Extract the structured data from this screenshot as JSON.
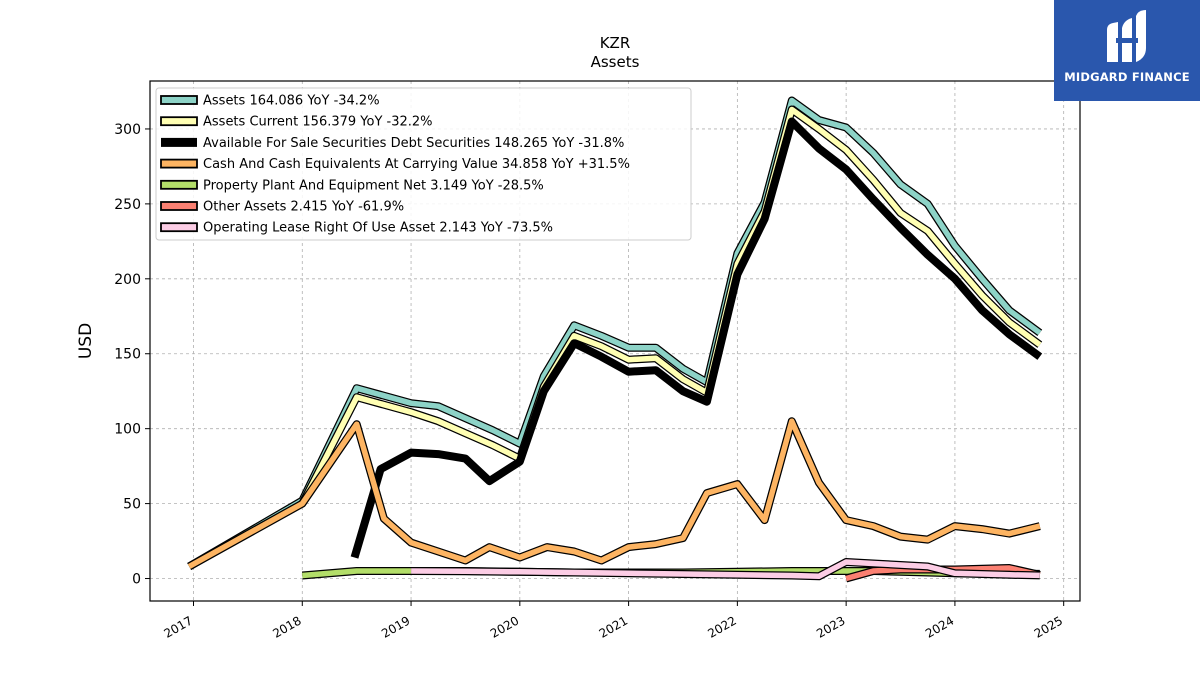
{
  "chart_data": {
    "type": "line",
    "title": "KZR",
    "subtitle": "Assets",
    "ylabel": "USD",
    "xlabel": "",
    "ylim": [
      -15,
      332
    ],
    "xlim": [
      2016.6,
      2025.15
    ],
    "yticks": [
      0,
      50,
      100,
      150,
      200,
      250,
      300
    ],
    "xticks": [
      2017,
      2018,
      2019,
      2020,
      2021,
      2022,
      2023,
      2024,
      2025
    ],
    "grid": true,
    "legend_position": "top-left",
    "series": [
      {
        "name": "Assets",
        "legend": "Assets  164.086 YoY -34.2%",
        "color": "#8dd3c7",
        "width": 5.5,
        "points": [
          [
            2016.96,
            8
          ],
          [
            2018.0,
            52
          ],
          [
            2018.5,
            127
          ],
          [
            2018.75,
            122
          ],
          [
            2019.0,
            117
          ],
          [
            2019.25,
            115
          ],
          [
            2019.5,
            107
          ],
          [
            2019.75,
            99
          ],
          [
            2020.0,
            90
          ],
          [
            2020.22,
            135
          ],
          [
            2020.5,
            169
          ],
          [
            2020.75,
            162
          ],
          [
            2021.0,
            154
          ],
          [
            2021.25,
            154
          ],
          [
            2021.5,
            140
          ],
          [
            2021.72,
            131
          ],
          [
            2022.0,
            217
          ],
          [
            2022.25,
            251
          ],
          [
            2022.5,
            319
          ],
          [
            2022.75,
            306
          ],
          [
            2023.0,
            301
          ],
          [
            2023.25,
            284
          ],
          [
            2023.5,
            263
          ],
          [
            2023.75,
            250
          ],
          [
            2024.0,
            222
          ],
          [
            2024.25,
            200
          ],
          [
            2024.5,
            179
          ],
          [
            2024.78,
            164
          ]
        ]
      },
      {
        "name": "Assets Current",
        "legend": "Assets Current  156.379 YoY -32.2%",
        "color": "#ffffb3",
        "width": 5.5,
        "points": [
          [
            2018.0,
            50
          ],
          [
            2018.5,
            121
          ],
          [
            2018.75,
            116
          ],
          [
            2019.0,
            111
          ],
          [
            2019.25,
            105
          ],
          [
            2019.5,
            97
          ],
          [
            2019.75,
            89
          ],
          [
            2020.0,
            80
          ],
          [
            2020.22,
            128
          ],
          [
            2020.5,
            162
          ],
          [
            2020.75,
            155
          ],
          [
            2021.0,
            146
          ],
          [
            2021.25,
            147
          ],
          [
            2021.5,
            133
          ],
          [
            2021.72,
            124
          ],
          [
            2022.0,
            210
          ],
          [
            2022.25,
            245
          ],
          [
            2022.5,
            313
          ],
          [
            2022.75,
            300
          ],
          [
            2023.0,
            286
          ],
          [
            2023.25,
            266
          ],
          [
            2023.5,
            244
          ],
          [
            2023.75,
            232
          ],
          [
            2024.0,
            210
          ],
          [
            2024.25,
            189
          ],
          [
            2024.5,
            171
          ],
          [
            2024.78,
            156
          ]
        ]
      },
      {
        "name": "Available For Sale Securities Debt Securities",
        "legend": "Available For Sale Securities Debt Securities  148.265 YoY -31.8%",
        "color": "#000000",
        "width": 8,
        "points": [
          [
            2018.48,
            14
          ],
          [
            2018.72,
            73
          ],
          [
            2019.0,
            84
          ],
          [
            2019.25,
            83
          ],
          [
            2019.5,
            80
          ],
          [
            2019.72,
            65
          ],
          [
            2020.0,
            78
          ],
          [
            2020.22,
            125
          ],
          [
            2020.5,
            157
          ],
          [
            2020.75,
            148
          ],
          [
            2021.0,
            138
          ],
          [
            2021.25,
            139
          ],
          [
            2021.5,
            125
          ],
          [
            2021.72,
            118
          ],
          [
            2022.0,
            203
          ],
          [
            2022.25,
            240
          ],
          [
            2022.5,
            305
          ],
          [
            2022.75,
            287
          ],
          [
            2023.0,
            273
          ],
          [
            2023.25,
            253
          ],
          [
            2023.5,
            234
          ],
          [
            2023.75,
            216
          ],
          [
            2024.0,
            200
          ],
          [
            2024.25,
            179
          ],
          [
            2024.5,
            163
          ],
          [
            2024.78,
            148
          ]
        ]
      },
      {
        "name": "Cash And Cash Equivalents At Carrying Value",
        "legend": "Cash And Cash Equivalents At Carrying Value  34.858 YoY +31.5%",
        "color": "#fdb462",
        "width": 5.5,
        "points": [
          [
            2016.96,
            8
          ],
          [
            2018.0,
            50
          ],
          [
            2018.5,
            103
          ],
          [
            2018.75,
            40
          ],
          [
            2019.0,
            24
          ],
          [
            2019.25,
            18
          ],
          [
            2019.5,
            12
          ],
          [
            2019.72,
            21
          ],
          [
            2020.0,
            14
          ],
          [
            2020.25,
            21
          ],
          [
            2020.5,
            18
          ],
          [
            2020.75,
            12
          ],
          [
            2021.0,
            21
          ],
          [
            2021.25,
            23
          ],
          [
            2021.5,
            27
          ],
          [
            2021.72,
            57
          ],
          [
            2022.0,
            63
          ],
          [
            2022.25,
            39
          ],
          [
            2022.5,
            105
          ],
          [
            2022.75,
            64
          ],
          [
            2023.0,
            39
          ],
          [
            2023.25,
            35
          ],
          [
            2023.5,
            28
          ],
          [
            2023.75,
            26
          ],
          [
            2024.0,
            35
          ],
          [
            2024.25,
            33
          ],
          [
            2024.5,
            30
          ],
          [
            2024.78,
            35
          ]
        ]
      },
      {
        "name": "Property Plant And Equipment Net",
        "legend": "Property Plant And Equipment Net  3.149 YoY -28.5%",
        "color": "#b3de69",
        "width": 5.5,
        "points": [
          [
            2018.0,
            2
          ],
          [
            2018.5,
            5
          ],
          [
            2019.0,
            5
          ],
          [
            2019.5,
            5
          ],
          [
            2020.0,
            4.5
          ],
          [
            2020.5,
            4
          ],
          [
            2021.0,
            4
          ],
          [
            2021.5,
            4
          ],
          [
            2022.0,
            4.5
          ],
          [
            2022.5,
            5
          ],
          [
            2023.0,
            5
          ],
          [
            2023.25,
            5
          ],
          [
            2023.5,
            4.5
          ],
          [
            2024.0,
            3.5
          ],
          [
            2024.5,
            3.2
          ],
          [
            2024.78,
            3.1
          ]
        ]
      },
      {
        "name": "Other Assets",
        "legend": "Other Assets  2.415 YoY -61.9%",
        "color": "#fb8072",
        "width": 5.5,
        "points": [
          [
            2023.0,
            0
          ],
          [
            2023.25,
            5
          ],
          [
            2023.5,
            6
          ],
          [
            2023.75,
            6
          ],
          [
            2024.0,
            6
          ],
          [
            2024.25,
            6.5
          ],
          [
            2024.5,
            7
          ],
          [
            2024.78,
            2.4
          ]
        ]
      },
      {
        "name": "Operating Lease Right Of Use Asset",
        "legend": "Operating Lease Right Of Use Asset  2.143 YoY -73.5%",
        "color": "#fccde5",
        "width": 5.5,
        "points": [
          [
            2019.0,
            5
          ],
          [
            2019.5,
            4.8
          ],
          [
            2020.0,
            4.5
          ],
          [
            2020.5,
            4
          ],
          [
            2021.0,
            3.5
          ],
          [
            2021.5,
            3
          ],
          [
            2022.0,
            2.5
          ],
          [
            2022.5,
            2
          ],
          [
            2022.75,
            1.5
          ],
          [
            2023.0,
            11
          ],
          [
            2023.25,
            10
          ],
          [
            2023.5,
            9
          ],
          [
            2023.75,
            8
          ],
          [
            2024.0,
            3.5
          ],
          [
            2024.25,
            3
          ],
          [
            2024.5,
            2.5
          ],
          [
            2024.78,
            2.1
          ]
        ]
      }
    ]
  },
  "logo": {
    "text": "MIDGARD FINANCE"
  }
}
